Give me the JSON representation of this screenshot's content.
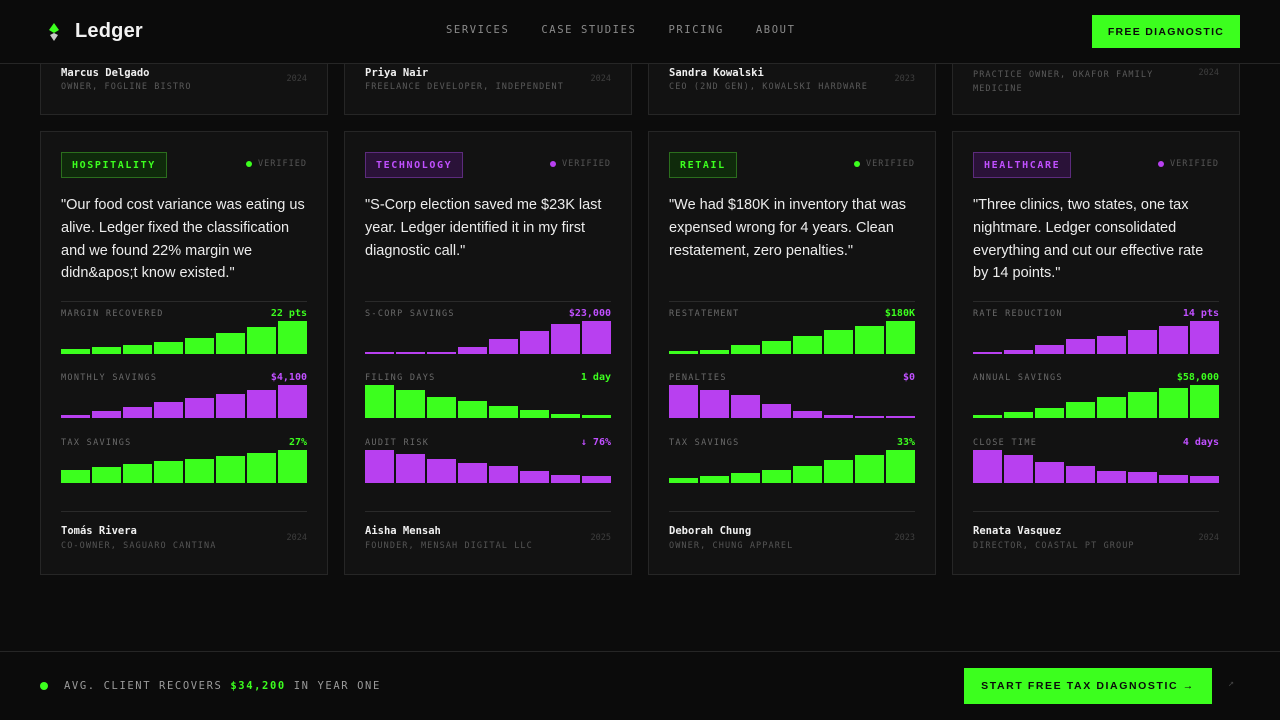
{
  "brand": {
    "name": "Ledger"
  },
  "nav": [
    "SERVICES",
    "CASE STUDIES",
    "PRICING",
    "ABOUT"
  ],
  "header_cta": "FREE DIAGNOSTIC",
  "top_cards": [
    {
      "name": "Marcus Delgado",
      "role": "OWNER, FOGLINE BISTRO",
      "year": "2024"
    },
    {
      "name": "Priya Nair",
      "role": "FREELANCE DEVELOPER, INDEPENDENT",
      "year": "2024"
    },
    {
      "name": "Sandra Kowalski",
      "role": "CEO (2ND GEN), KOWALSKI HARDWARE",
      "year": "2023"
    },
    {
      "name": "",
      "role": "PRACTICE OWNER, OKAFOR FAMILY MEDICINE",
      "year": "2024"
    }
  ],
  "cards": [
    {
      "tag": "HOSPITALITY",
      "tag_color": "green",
      "verified": "VERIFIED",
      "quote": "\"Our food cost variance was eating us alive. Ledger fixed the classification and we found 22% margin we didn&apos;t know existed.\"",
      "metrics": [
        {
          "label": "MARGIN RECOVERED",
          "value": "22 pts",
          "color": "green",
          "bars": [
            0.15,
            0.22,
            0.28,
            0.36,
            0.48,
            0.63,
            0.82,
            1.0
          ]
        },
        {
          "label": "MONTHLY SAVINGS",
          "value": "$4,100",
          "color": "purple",
          "bars": [
            0.1,
            0.22,
            0.34,
            0.48,
            0.6,
            0.72,
            0.84,
            1.0
          ]
        },
        {
          "label": "TAX SAVINGS",
          "value": "27%",
          "color": "green",
          "bars": [
            0.38,
            0.47,
            0.57,
            0.66,
            0.73,
            0.82,
            0.9,
            1.0
          ]
        }
      ],
      "person": {
        "name": "Tomás Rivera",
        "role": "CO-OWNER, SAGUARO CANTINA",
        "year": "2024"
      }
    },
    {
      "tag": "TECHNOLOGY",
      "tag_color": "purple",
      "verified": "VERIFIED",
      "quote": "\"S-Corp election saved me $23K last year. Ledger identified it in my first diagnostic call.\"",
      "metrics": [
        {
          "label": "S-CORP SAVINGS",
          "value": "$23,000",
          "color": "purple",
          "bars": [
            0.06,
            0.06,
            0.06,
            0.2,
            0.45,
            0.7,
            0.9,
            1.0
          ]
        },
        {
          "label": "FILING DAYS",
          "value": "1 day",
          "color": "green",
          "bars": [
            1.0,
            0.86,
            0.63,
            0.5,
            0.37,
            0.25,
            0.13,
            0.1
          ]
        },
        {
          "label": "AUDIT RISK",
          "value": "↓ 76%",
          "color": "purple",
          "bars": [
            1.0,
            0.88,
            0.74,
            0.62,
            0.5,
            0.36,
            0.24,
            0.22
          ]
        }
      ],
      "person": {
        "name": "Aisha Mensah",
        "role": "FOUNDER, MENSAH DIGITAL LLC",
        "year": "2025"
      }
    },
    {
      "tag": "RETAIL",
      "tag_color": "green",
      "verified": "VERIFIED",
      "quote": "\"We had $180K in inventory that was expensed wrong for 4 years. Clean restatement, zero penalties.\"",
      "metrics": [
        {
          "label": "RESTATEMENT",
          "value": "$180K",
          "color": "green",
          "bars": [
            0.08,
            0.13,
            0.26,
            0.4,
            0.56,
            0.74,
            0.86,
            1.0
          ]
        },
        {
          "label": "PENALTIES",
          "value": "$0",
          "color": "purple",
          "bars": [
            1.0,
            0.84,
            0.7,
            0.42,
            0.22,
            0.08,
            0.05,
            0.05
          ]
        },
        {
          "label": "TAX SAVINGS",
          "value": "33%",
          "color": "green",
          "bars": [
            0.16,
            0.2,
            0.3,
            0.4,
            0.52,
            0.7,
            0.86,
            1.0
          ]
        }
      ],
      "person": {
        "name": "Deborah Chung",
        "role": "OWNER, CHUNG APPAREL",
        "year": "2023"
      }
    },
    {
      "tag": "HEALTHCARE",
      "tag_color": "purple",
      "verified": "VERIFIED",
      "quote": "\"Three clinics, two states, one tax nightmare. Ledger consolidated everything and cut our effective rate by 14 points.\"",
      "metrics": [
        {
          "label": "RATE REDUCTION",
          "value": "14 pts",
          "color": "purple",
          "bars": [
            0.06,
            0.13,
            0.28,
            0.45,
            0.55,
            0.72,
            0.86,
            1.0
          ]
        },
        {
          "label": "ANNUAL SAVINGS",
          "value": "$58,000",
          "color": "green",
          "bars": [
            0.09,
            0.18,
            0.3,
            0.48,
            0.64,
            0.8,
            0.9,
            1.0
          ]
        },
        {
          "label": "CLOSE TIME",
          "value": "4 days",
          "color": "purple",
          "bars": [
            1.0,
            0.84,
            0.64,
            0.5,
            0.36,
            0.32,
            0.25,
            0.2
          ]
        }
      ],
      "person": {
        "name": "Renata Vasquez",
        "role": "DIRECTOR, COASTAL PT GROUP",
        "year": "2024"
      }
    }
  ],
  "bottom": {
    "prefix": "AVG. CLIENT RECOVERS",
    "amount": "$34,200",
    "suffix": "IN YEAR ONE",
    "cta": "START FREE TAX DIAGNOSTIC →",
    "arrow": "↗"
  },
  "colors": {
    "accent_green": "#3cff1e",
    "accent_purple": "#b840f0",
    "background": "#0c0c0c"
  }
}
